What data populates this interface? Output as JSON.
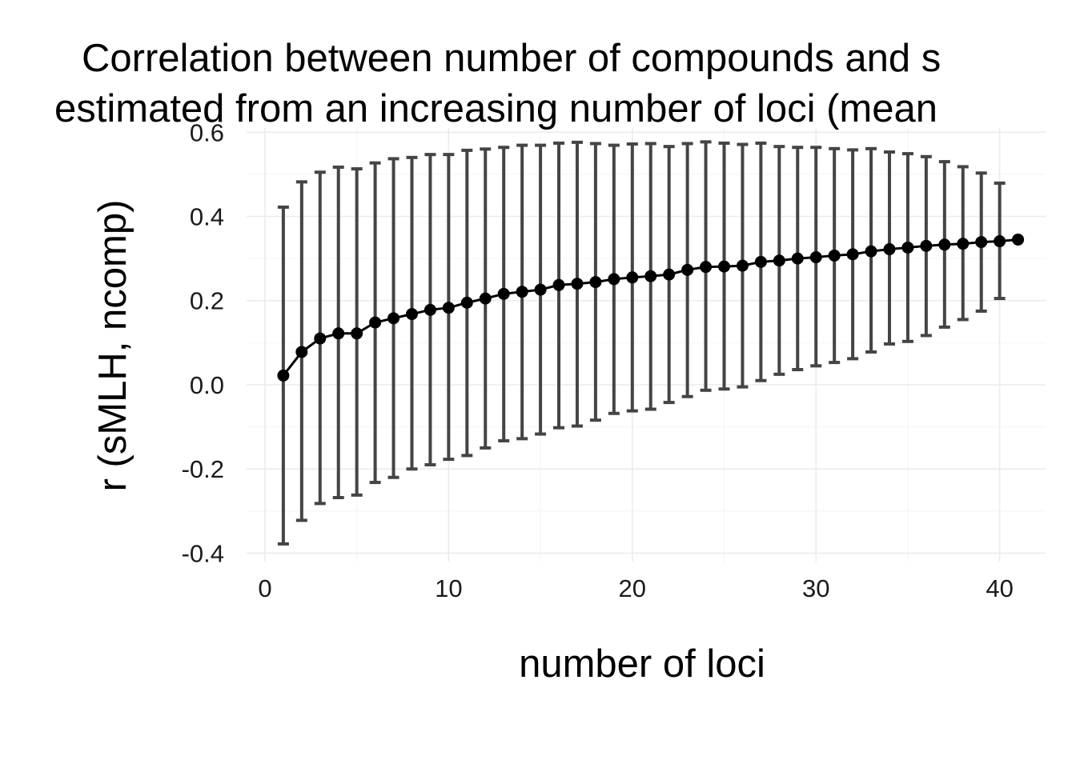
{
  "chart_data": {
    "type": "line",
    "title": [
      "Correlation between number of compounds and s",
      "estimated from an increasing number of loci (mean"
    ],
    "xlabel": "number of loci",
    "ylabel": "r (sMLH, ncomp)",
    "xlim": [
      -1,
      42.5
    ],
    "ylim": [
      -0.42,
      0.61
    ],
    "x_ticks": [
      0,
      10,
      20,
      30,
      40
    ],
    "x_tick_labels": [
      "0",
      "10",
      "20",
      "30",
      "40"
    ],
    "y_ticks": [
      -0.4,
      -0.2,
      0.0,
      0.2,
      0.4,
      0.6
    ],
    "y_tick_labels": [
      "-0.4",
      "-0.2",
      "0.0",
      "0.2",
      "0.4",
      "0.6"
    ],
    "grid": true,
    "series": [
      {
        "x": [
          1,
          2,
          3,
          4,
          5,
          6,
          7,
          8,
          9,
          10,
          11,
          12,
          13,
          14,
          15,
          16,
          17,
          18,
          19,
          20,
          21,
          22,
          23,
          24,
          25,
          26,
          27,
          28,
          29,
          30,
          31,
          32,
          33,
          34,
          35,
          36,
          37,
          38,
          39,
          40,
          41
        ],
        "mean": [
          0.022,
          0.078,
          0.11,
          0.122,
          0.122,
          0.148,
          0.158,
          0.168,
          0.178,
          0.183,
          0.195,
          0.205,
          0.216,
          0.221,
          0.226,
          0.237,
          0.24,
          0.244,
          0.251,
          0.255,
          0.258,
          0.262,
          0.273,
          0.28,
          0.281,
          0.283,
          0.292,
          0.295,
          0.3,
          0.303,
          0.307,
          0.31,
          0.317,
          0.322,
          0.326,
          0.33,
          0.333,
          0.335,
          0.339,
          0.341,
          0.345
        ],
        "lower": [
          -0.378,
          -0.322,
          -0.282,
          -0.268,
          -0.262,
          -0.232,
          -0.22,
          -0.2,
          -0.19,
          -0.177,
          -0.168,
          -0.15,
          -0.133,
          -0.128,
          -0.117,
          -0.102,
          -0.098,
          -0.084,
          -0.068,
          -0.062,
          -0.058,
          -0.042,
          -0.028,
          -0.013,
          -0.01,
          -0.005,
          0.01,
          0.025,
          0.036,
          0.045,
          0.053,
          0.062,
          0.078,
          0.097,
          0.103,
          0.117,
          0.137,
          0.155,
          0.175,
          0.205,
          0.345
        ],
        "upper": [
          0.422,
          0.482,
          0.505,
          0.517,
          0.513,
          0.527,
          0.537,
          0.54,
          0.547,
          0.547,
          0.557,
          0.56,
          0.564,
          0.569,
          0.569,
          0.574,
          0.576,
          0.573,
          0.569,
          0.572,
          0.573,
          0.566,
          0.573,
          0.577,
          0.574,
          0.571,
          0.574,
          0.566,
          0.564,
          0.564,
          0.561,
          0.558,
          0.561,
          0.553,
          0.549,
          0.542,
          0.53,
          0.518,
          0.503,
          0.479,
          0.345
        ]
      }
    ]
  }
}
